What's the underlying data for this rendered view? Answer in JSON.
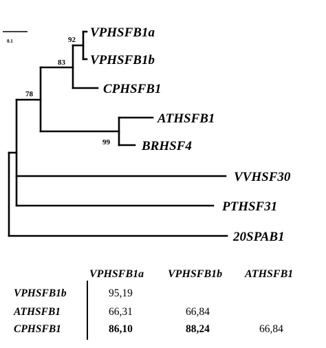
{
  "tree": {
    "scale_label": "0.1",
    "leaves": [
      {
        "label": "VPHSFB1a"
      },
      {
        "label": "VPHSFB1b"
      },
      {
        "label": "CPHSFB1"
      },
      {
        "label": "ATHSFB1"
      },
      {
        "label": "BRHSF4"
      },
      {
        "label": "VVHSF30"
      },
      {
        "label": "PTHSF31"
      },
      {
        "label": "20SPAB1"
      }
    ],
    "bootstrap": [
      {
        "value": "92"
      },
      {
        "value": "83"
      },
      {
        "value": "78"
      },
      {
        "value": "99"
      }
    ]
  },
  "table": {
    "columns": [
      "VPHSFB1a",
      "VPHSFB1b",
      "ATHSFB1"
    ],
    "rows": [
      {
        "name": "VPHSFB1b",
        "cells": [
          {
            "value": "95,19",
            "bold": false
          },
          {
            "value": "",
            "bold": false
          },
          {
            "value": "",
            "bold": false
          }
        ]
      },
      {
        "name": "ATHSFB1",
        "cells": [
          {
            "value": "66,31",
            "bold": false
          },
          {
            "value": "66,84",
            "bold": false
          },
          {
            "value": "",
            "bold": false
          }
        ]
      },
      {
        "name": "CPHSFB1",
        "cells": [
          {
            "value": "86,10",
            "bold": true
          },
          {
            "value": "88,24",
            "bold": true
          },
          {
            "value": "66,84",
            "bold": false
          }
        ]
      }
    ]
  }
}
